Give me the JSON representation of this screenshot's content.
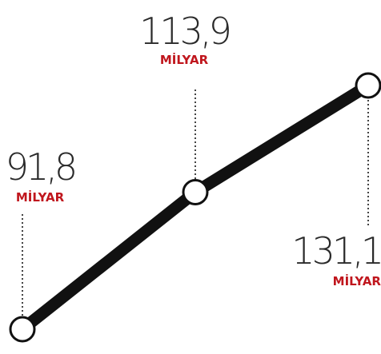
{
  "chart_data": {
    "type": "line",
    "categories": [
      null,
      null,
      null
    ],
    "series": [
      {
        "color": "#111111",
        "values": [
          91.8,
          113.9,
          131.1
        ],
        "value_labels": [
          "91,8",
          "113,9",
          "131,1"
        ]
      }
    ],
    "unit": "MİLYAR"
  }
}
